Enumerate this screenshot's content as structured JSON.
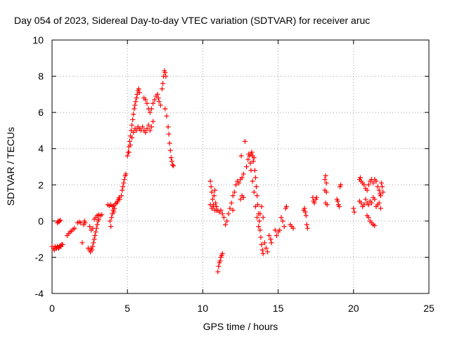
{
  "chart_data": {
    "type": "scatter",
    "title": "Day 054 of 2023, Sidereal Day-to-day VTEC variation (SDTVAR) for receiver aruc",
    "xlabel": "GPS time / hours",
    "ylabel": "SDTVAR / TECUs",
    "xlim": [
      0,
      25
    ],
    "ylim": [
      -4,
      10
    ],
    "xticks": [
      0,
      5,
      10,
      15,
      20,
      25
    ],
    "yticks": [
      -4,
      -2,
      0,
      2,
      4,
      6,
      8,
      10
    ],
    "grid": true,
    "marker": "+",
    "color": "#ff0000",
    "points": [
      [
        0.0,
        -1.4
      ],
      [
        0.1,
        -1.5
      ],
      [
        0.15,
        -1.6
      ],
      [
        0.2,
        -1.4
      ],
      [
        0.25,
        -1.5
      ],
      [
        0.3,
        -1.5
      ],
      [
        0.35,
        -1.4
      ],
      [
        0.4,
        -1.45
      ],
      [
        0.45,
        -1.5
      ],
      [
        0.5,
        -1.4
      ],
      [
        0.55,
        -1.35
      ],
      [
        0.6,
        -1.4
      ],
      [
        0.65,
        -1.3
      ],
      [
        0.7,
        -1.3
      ],
      [
        0.35,
        -0.1
      ],
      [
        0.4,
        0.0
      ],
      [
        0.45,
        -0.05
      ],
      [
        0.5,
        0.0
      ],
      [
        0.55,
        0.05
      ],
      [
        1.0,
        -0.8
      ],
      [
        1.1,
        -0.7
      ],
      [
        1.2,
        -0.6
      ],
      [
        1.3,
        -0.55
      ],
      [
        1.4,
        -0.45
      ],
      [
        1.5,
        -0.4
      ],
      [
        1.7,
        -0.1
      ],
      [
        1.8,
        -0.05
      ],
      [
        1.9,
        -0.1
      ],
      [
        2.0,
        -1.2
      ],
      [
        2.1,
        -0.2
      ],
      [
        2.15,
        0.0
      ],
      [
        2.2,
        -0.1
      ],
      [
        2.4,
        -1.5
      ],
      [
        2.5,
        -1.6
      ],
      [
        2.55,
        -1.7
      ],
      [
        2.6,
        -1.5
      ],
      [
        2.65,
        -1.6
      ],
      [
        2.7,
        -1.4
      ],
      [
        2.75,
        -1.2
      ],
      [
        2.8,
        -1.0
      ],
      [
        2.85,
        -0.8
      ],
      [
        2.9,
        -0.6
      ],
      [
        2.95,
        -0.4
      ],
      [
        3.0,
        -0.2
      ],
      [
        3.05,
        0.0
      ],
      [
        3.1,
        0.1
      ],
      [
        2.5,
        -0.3
      ],
      [
        2.6,
        -0.5
      ],
      [
        2.7,
        -0.4
      ],
      [
        2.8,
        0.1
      ],
      [
        2.9,
        0.2
      ],
      [
        3.0,
        0.3
      ],
      [
        3.1,
        0.35
      ],
      [
        3.2,
        0.3
      ],
      [
        3.3,
        0.35
      ],
      [
        3.7,
        0.9
      ],
      [
        3.8,
        0.85
      ],
      [
        3.9,
        0.9
      ],
      [
        4.0,
        0.8
      ],
      [
        4.1,
        0.85
      ],
      [
        4.2,
        0.95
      ],
      [
        4.3,
        1.0
      ],
      [
        4.35,
        1.1
      ],
      [
        4.4,
        1.2
      ],
      [
        4.45,
        1.3
      ],
      [
        3.85,
        0.0
      ],
      [
        3.9,
        -0.3
      ],
      [
        3.95,
        0.2
      ],
      [
        4.0,
        0.4
      ],
      [
        4.05,
        0.6
      ],
      [
        4.1,
        0.5
      ],
      [
        4.15,
        0.7
      ],
      [
        4.5,
        1.2
      ],
      [
        4.6,
        1.4
      ],
      [
        4.65,
        1.7
      ],
      [
        4.7,
        1.9
      ],
      [
        4.75,
        2.1
      ],
      [
        4.8,
        2.3
      ],
      [
        4.85,
        2.5
      ],
      [
        4.9,
        2.6
      ],
      [
        5.0,
        3.6
      ],
      [
        5.05,
        3.8
      ],
      [
        5.1,
        4.1
      ],
      [
        5.15,
        4.4
      ],
      [
        5.2,
        4.7
      ],
      [
        5.25,
        5.0
      ],
      [
        5.3,
        5.3
      ],
      [
        5.35,
        5.6
      ],
      [
        5.4,
        5.9
      ],
      [
        5.45,
        6.2
      ],
      [
        5.5,
        6.4
      ],
      [
        5.55,
        6.6
      ],
      [
        5.6,
        6.8
      ],
      [
        5.65,
        7.0
      ],
      [
        5.7,
        7.2
      ],
      [
        5.75,
        7.3
      ],
      [
        5.8,
        7.1
      ],
      [
        5.1,
        3.8
      ],
      [
        5.2,
        4.2
      ],
      [
        5.3,
        4.6
      ],
      [
        5.4,
        4.9
      ],
      [
        5.5,
        5.1
      ],
      [
        5.6,
        5.0
      ],
      [
        5.7,
        5.2
      ],
      [
        5.8,
        5.1
      ],
      [
        5.9,
        5.0
      ],
      [
        6.0,
        5.2
      ],
      [
        6.1,
        5.0
      ],
      [
        6.2,
        4.9
      ],
      [
        6.3,
        5.1
      ],
      [
        6.4,
        5.3
      ],
      [
        6.5,
        5.0
      ],
      [
        6.6,
        5.2
      ],
      [
        6.7,
        5.5
      ],
      [
        6.1,
        6.8
      ],
      [
        6.2,
        6.7
      ],
      [
        6.3,
        6.5
      ],
      [
        6.4,
        6.2
      ],
      [
        6.5,
        6.0
      ],
      [
        6.6,
        6.2
      ],
      [
        6.7,
        6.5
      ],
      [
        6.8,
        6.7
      ],
      [
        6.9,
        6.9
      ],
      [
        7.0,
        7.0
      ],
      [
        7.05,
        6.8
      ],
      [
        7.1,
        6.6
      ],
      [
        7.2,
        6.4
      ],
      [
        7.3,
        7.3
      ],
      [
        7.35,
        7.6
      ],
      [
        7.4,
        8.0
      ],
      [
        7.45,
        8.3
      ],
      [
        7.5,
        8.2
      ],
      [
        7.55,
        8.0
      ],
      [
        7.5,
        6.2
      ],
      [
        7.6,
        5.8
      ],
      [
        7.7,
        5.2
      ],
      [
        7.75,
        4.8
      ],
      [
        7.8,
        4.3
      ],
      [
        7.85,
        3.9
      ],
      [
        7.9,
        3.5
      ],
      [
        7.95,
        3.3
      ],
      [
        8.0,
        3.1
      ],
      [
        8.05,
        3.05
      ],
      [
        10.5,
        2.2
      ],
      [
        10.55,
        1.9
      ],
      [
        10.6,
        1.6
      ],
      [
        10.65,
        1.2
      ],
      [
        10.7,
        0.9
      ],
      [
        10.75,
        1.4
      ],
      [
        10.8,
        1.7
      ],
      [
        10.85,
        1.0
      ],
      [
        10.9,
        0.6
      ],
      [
        10.5,
        0.9
      ],
      [
        10.6,
        0.7
      ],
      [
        10.7,
        0.8
      ],
      [
        10.8,
        0.6
      ],
      [
        10.9,
        0.8
      ],
      [
        11.0,
        0.6
      ],
      [
        11.1,
        0.5
      ],
      [
        11.2,
        0.6
      ],
      [
        11.3,
        0.4
      ],
      [
        11.0,
        -2.8
      ],
      [
        11.05,
        -2.5
      ],
      [
        11.1,
        -2.3
      ],
      [
        11.15,
        -2.2
      ],
      [
        11.2,
        -2.0
      ],
      [
        11.25,
        -1.9
      ],
      [
        11.3,
        -1.8
      ],
      [
        11.4,
        0.2
      ],
      [
        11.5,
        -0.2
      ],
      [
        11.6,
        0.0
      ],
      [
        11.7,
        0.4
      ],
      [
        11.8,
        0.7
      ],
      [
        11.9,
        1.0
      ],
      [
        12.0,
        0.6
      ],
      [
        12.0,
        1.4
      ],
      [
        12.1,
        1.6
      ],
      [
        12.2,
        2.0
      ],
      [
        12.3,
        2.2
      ],
      [
        12.4,
        2.1
      ],
      [
        12.5,
        2.3
      ],
      [
        12.55,
        3.6
      ],
      [
        12.6,
        2.4
      ],
      [
        12.7,
        2.6
      ],
      [
        12.5,
        1.2
      ],
      [
        12.6,
        1.4
      ],
      [
        12.7,
        1.3
      ],
      [
        12.8,
        4.4
      ],
      [
        12.9,
        3.0
      ],
      [
        13.0,
        3.4
      ],
      [
        13.05,
        3.7
      ],
      [
        13.1,
        3.6
      ],
      [
        13.15,
        3.2
      ],
      [
        13.2,
        3.7
      ],
      [
        13.25,
        3.8
      ],
      [
        13.3,
        3.6
      ],
      [
        13.35,
        3.3
      ],
      [
        13.4,
        3.5
      ],
      [
        13.45,
        2.8
      ],
      [
        13.5,
        2.4
      ],
      [
        13.55,
        1.9
      ],
      [
        13.6,
        1.4
      ],
      [
        13.65,
        0.9
      ],
      [
        13.7,
        0.4
      ],
      [
        13.75,
        0.0
      ],
      [
        13.8,
        -0.5
      ],
      [
        13.85,
        -0.9
      ],
      [
        13.9,
        -1.3
      ],
      [
        13.95,
        -1.6
      ],
      [
        14.0,
        -1.8
      ],
      [
        13.2,
        2.8
      ],
      [
        13.3,
        2.2
      ],
      [
        13.4,
        1.6
      ],
      [
        13.5,
        0.8
      ],
      [
        13.6,
        0.2
      ],
      [
        13.7,
        -0.3
      ],
      [
        13.8,
        0.4
      ],
      [
        13.9,
        0.8
      ],
      [
        14.0,
        0.2
      ],
      [
        14.1,
        -1.2
      ],
      [
        14.2,
        -1.5
      ],
      [
        14.3,
        -1.7
      ],
      [
        14.4,
        -0.8
      ],
      [
        14.5,
        -1.0
      ],
      [
        14.55,
        -1.2
      ],
      [
        14.8,
        -0.5
      ],
      [
        14.9,
        -0.8
      ],
      [
        15.0,
        -0.6
      ],
      [
        15.1,
        -0.5
      ],
      [
        15.2,
        0.2
      ],
      [
        15.3,
        0.0
      ],
      [
        15.4,
        -0.3
      ],
      [
        15.5,
        0.7
      ],
      [
        15.55,
        0.8
      ],
      [
        15.8,
        -0.2
      ],
      [
        15.9,
        -0.3
      ],
      [
        16.0,
        -0.4
      ],
      [
        16.7,
        0.6
      ],
      [
        16.75,
        0.7
      ],
      [
        16.8,
        0.5
      ],
      [
        16.85,
        0.3
      ],
      [
        16.9,
        -0.2
      ],
      [
        16.95,
        -0.4
      ],
      [
        17.3,
        1.3
      ],
      [
        17.35,
        1.1
      ],
      [
        17.4,
        1.0
      ],
      [
        17.5,
        1.2
      ],
      [
        17.55,
        1.3
      ],
      [
        18.1,
        2.3
      ],
      [
        18.15,
        2.5
      ],
      [
        18.2,
        2.1
      ],
      [
        18.1,
        1.7
      ],
      [
        18.2,
        1.6
      ],
      [
        18.15,
        1.0
      ],
      [
        18.25,
        0.9
      ],
      [
        18.9,
        1.2
      ],
      [
        18.95,
        1.1
      ],
      [
        19.0,
        0.9
      ],
      [
        19.05,
        0.8
      ],
      [
        19.1,
        1.9
      ],
      [
        19.15,
        2.0
      ],
      [
        20.0,
        0.7
      ],
      [
        20.05,
        0.5
      ],
      [
        20.4,
        2.3
      ],
      [
        20.45,
        2.4
      ],
      [
        20.5,
        2.2
      ],
      [
        20.6,
        2.1
      ],
      [
        20.7,
        2.0
      ],
      [
        20.8,
        1.8
      ],
      [
        20.9,
        1.7
      ],
      [
        21.0,
        2.0
      ],
      [
        21.1,
        2.2
      ],
      [
        21.2,
        2.3
      ],
      [
        21.3,
        2.1
      ],
      [
        21.4,
        2.3
      ],
      [
        21.5,
        2.2
      ],
      [
        21.6,
        1.9
      ],
      [
        21.7,
        1.7
      ],
      [
        21.75,
        1.5
      ],
      [
        21.8,
        1.4
      ],
      [
        21.85,
        2.1
      ],
      [
        21.9,
        1.9
      ],
      [
        21.95,
        1.6
      ],
      [
        20.4,
        1.1
      ],
      [
        20.5,
        1.0
      ],
      [
        20.6,
        0.8
      ],
      [
        20.7,
        0.9
      ],
      [
        20.8,
        1.2
      ],
      [
        20.9,
        1.0
      ],
      [
        21.0,
        0.9
      ],
      [
        21.1,
        1.1
      ],
      [
        21.2,
        1.0
      ],
      [
        21.3,
        1.3
      ],
      [
        21.4,
        1.2
      ],
      [
        21.5,
        0.8
      ],
      [
        21.6,
        0.9
      ],
      [
        21.7,
        1.0
      ],
      [
        21.8,
        0.7
      ],
      [
        20.9,
        0.3
      ],
      [
        21.0,
        0.2
      ],
      [
        21.1,
        0.0
      ],
      [
        21.2,
        -0.1
      ],
      [
        21.3,
        -0.2
      ],
      [
        21.4,
        -0.25
      ]
    ]
  }
}
